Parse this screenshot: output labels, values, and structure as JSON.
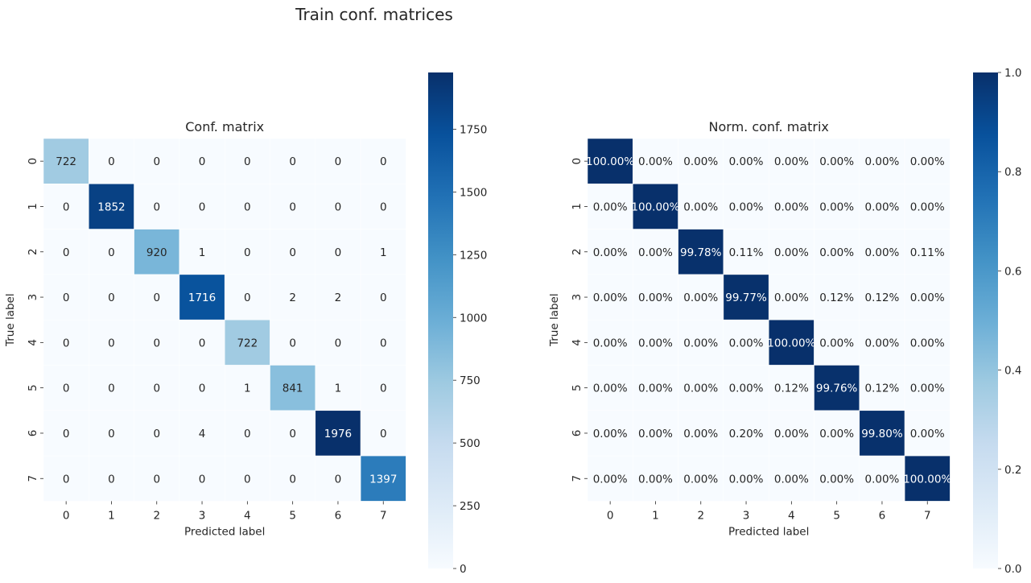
{
  "suptitle": "Train conf. matrices",
  "chart_data": [
    {
      "type": "heatmap",
      "title": "Conf. matrix",
      "xlabel": "Predicted label",
      "ylabel": "True label",
      "x_categories": [
        "0",
        "1",
        "2",
        "3",
        "4",
        "5",
        "6",
        "7"
      ],
      "y_categories": [
        "0",
        "1",
        "2",
        "3",
        "4",
        "5",
        "6",
        "7"
      ],
      "values": [
        [
          722,
          0,
          0,
          0,
          0,
          0,
          0,
          0
        ],
        [
          0,
          1852,
          0,
          0,
          0,
          0,
          0,
          0
        ],
        [
          0,
          0,
          920,
          1,
          0,
          0,
          0,
          1
        ],
        [
          0,
          0,
          0,
          1716,
          0,
          2,
          2,
          0
        ],
        [
          0,
          0,
          0,
          0,
          722,
          0,
          0,
          0
        ],
        [
          0,
          0,
          0,
          0,
          1,
          841,
          1,
          0
        ],
        [
          0,
          0,
          0,
          4,
          0,
          0,
          1976,
          0
        ],
        [
          0,
          0,
          0,
          0,
          0,
          0,
          0,
          1397
        ]
      ],
      "annotations": [
        [
          "722",
          "0",
          "0",
          "0",
          "0",
          "0",
          "0",
          "0"
        ],
        [
          "0",
          "1852",
          "0",
          "0",
          "0",
          "0",
          "0",
          "0"
        ],
        [
          "0",
          "0",
          "920",
          "1",
          "0",
          "0",
          "0",
          "1"
        ],
        [
          "0",
          "0",
          "0",
          "1716",
          "0",
          "2",
          "2",
          "0"
        ],
        [
          "0",
          "0",
          "0",
          "0",
          "722",
          "0",
          "0",
          "0"
        ],
        [
          "0",
          "0",
          "0",
          "0",
          "1",
          "841",
          "1",
          "0"
        ],
        [
          "0",
          "0",
          "0",
          "4",
          "0",
          "0",
          "1976",
          "0"
        ],
        [
          "0",
          "0",
          "0",
          "0",
          "0",
          "0",
          "0",
          "1397"
        ]
      ],
      "colormap": "Blues",
      "vmin": 0,
      "vmax": 1976,
      "colorbar_ticks": [
        0,
        250,
        500,
        750,
        1000,
        1250,
        1500,
        1750
      ],
      "colorbar_tick_labels": [
        "0",
        "250",
        "500",
        "750",
        "1000",
        "1250",
        "1500",
        "1750"
      ]
    },
    {
      "type": "heatmap",
      "title": "Norm. conf. matrix",
      "xlabel": "Predicted label",
      "ylabel": "True label",
      "x_categories": [
        "0",
        "1",
        "2",
        "3",
        "4",
        "5",
        "6",
        "7"
      ],
      "y_categories": [
        "0",
        "1",
        "2",
        "3",
        "4",
        "5",
        "6",
        "7"
      ],
      "values": [
        [
          1.0,
          0,
          0,
          0,
          0,
          0,
          0,
          0
        ],
        [
          0,
          1.0,
          0,
          0,
          0,
          0,
          0,
          0
        ],
        [
          0,
          0,
          0.9978,
          0.0011,
          0,
          0,
          0,
          0.0011
        ],
        [
          0,
          0,
          0,
          0.9977,
          0,
          0.0012,
          0.0012,
          0
        ],
        [
          0,
          0,
          0,
          0,
          1.0,
          0,
          0,
          0
        ],
        [
          0,
          0,
          0,
          0,
          0.0012,
          0.9976,
          0.0012,
          0
        ],
        [
          0,
          0,
          0,
          0.002,
          0,
          0,
          0.998,
          0
        ],
        [
          0,
          0,
          0,
          0,
          0,
          0,
          0,
          1.0
        ]
      ],
      "annotations": [
        [
          "100.00%",
          "0.00%",
          "0.00%",
          "0.00%",
          "0.00%",
          "0.00%",
          "0.00%",
          "0.00%"
        ],
        [
          "0.00%",
          "100.00%",
          "0.00%",
          "0.00%",
          "0.00%",
          "0.00%",
          "0.00%",
          "0.00%"
        ],
        [
          "0.00%",
          "0.00%",
          "99.78%",
          "0.11%",
          "0.00%",
          "0.00%",
          "0.00%",
          "0.11%"
        ],
        [
          "0.00%",
          "0.00%",
          "0.00%",
          "99.77%",
          "0.00%",
          "0.12%",
          "0.12%",
          "0.00%"
        ],
        [
          "0.00%",
          "0.00%",
          "0.00%",
          "0.00%",
          "100.00%",
          "0.00%",
          "0.00%",
          "0.00%"
        ],
        [
          "0.00%",
          "0.00%",
          "0.00%",
          "0.00%",
          "0.12%",
          "99.76%",
          "0.12%",
          "0.00%"
        ],
        [
          "0.00%",
          "0.00%",
          "0.00%",
          "0.20%",
          "0.00%",
          "0.00%",
          "99.80%",
          "0.00%"
        ],
        [
          "0.00%",
          "0.00%",
          "0.00%",
          "0.00%",
          "0.00%",
          "0.00%",
          "0.00%",
          "100.00%"
        ]
      ],
      "colormap": "Blues",
      "vmin": 0,
      "vmax": 1,
      "colorbar_ticks": [
        0,
        0.2,
        0.4,
        0.6,
        0.8,
        1.0
      ],
      "colorbar_tick_labels": [
        "0.0",
        "0.2",
        "0.4",
        "0.6",
        "0.8",
        "1.0"
      ]
    }
  ]
}
